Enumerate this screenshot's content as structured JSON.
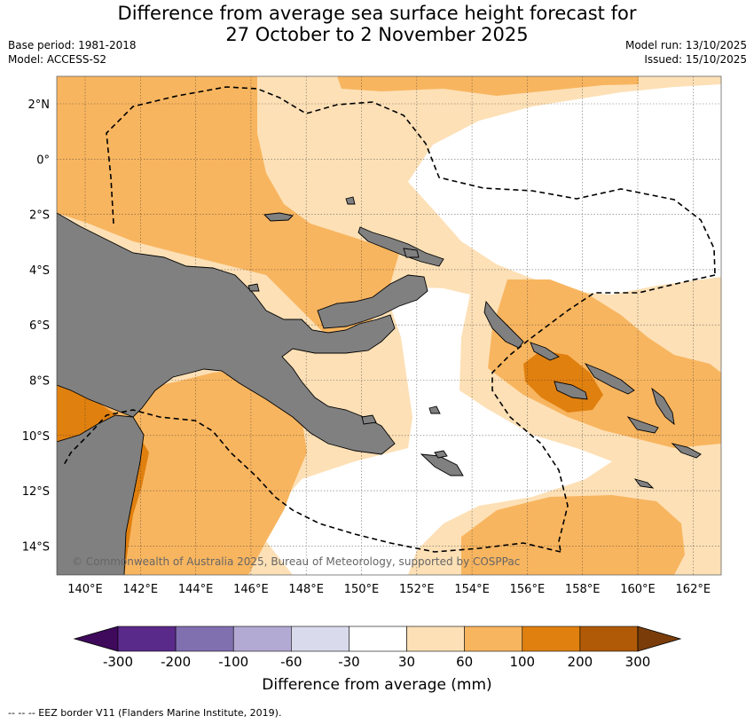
{
  "title_line1": "Difference from average sea surface height forecast for",
  "title_line2": "27 October to 2 November 2025",
  "base_period": "Base period: 1981-2018",
  "model": "Model: ACCESS-S2",
  "model_run": "Model run: 13/10/2025",
  "issued": "Issued: 15/10/2025",
  "lat_labels": [
    "2°N",
    "0°",
    "2°S",
    "4°S",
    "6°S",
    "8°S",
    "10°S",
    "12°S",
    "14°S"
  ],
  "lon_labels": [
    "140°E",
    "142°E",
    "144°E",
    "146°E",
    "148°E",
    "150°E",
    "152°E",
    "154°E",
    "156°E",
    "158°E",
    "160°E",
    "162°E"
  ],
  "copyright": "© Commonwealth of Australia 2025, Bureau of Meteorology, supported by COSPPac",
  "colorbar": {
    "ticks": [
      "-300",
      "-200",
      "-100",
      "-60",
      "-30",
      "30",
      "60",
      "100",
      "200",
      "300"
    ],
    "colors": [
      "#3f0a5c",
      "#5a2a8a",
      "#8070b0",
      "#b3aad4",
      "#d9daeb",
      "#ffffff",
      "#fde0b6",
      "#f8b55f",
      "#e0800f",
      "#b05a08",
      "#7a3d0a"
    ],
    "title": "Difference from average (mm)"
  },
  "colors": {
    "land": "#808080",
    "ocean_neutral": "#ffffff",
    "band_30_60": "#fde0b6",
    "band_60_100": "#f8b55f",
    "band_100_200": "#e0800f"
  },
  "footer": "--  --  -- EEZ border V11 (Flanders Marine Institute, 2019)."
}
